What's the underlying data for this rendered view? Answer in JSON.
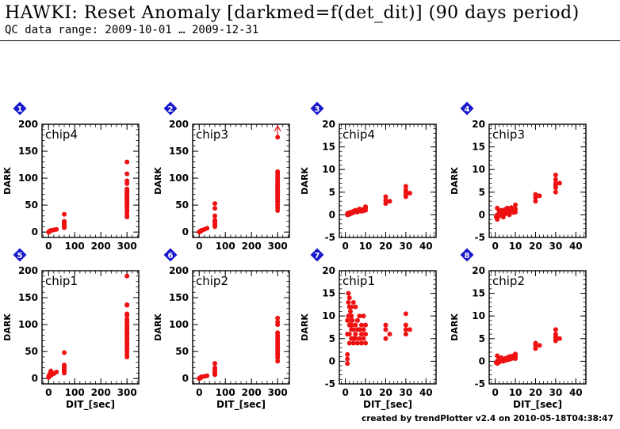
{
  "title": "HAWKI: Reset Anomaly [darkmed=f(det_dit)] (90 days period)",
  "subtitle": "QC data range: 2009-10-01 … 2009-12-31",
  "footer": "created by trendPlotter v2.4 on 2010-05-18T04:38:47",
  "colors": {
    "points": "#ee1111",
    "badge": "#1818cc",
    "axis": "#000000"
  },
  "chart_data": [
    {
      "type": "scatter",
      "badge": "1",
      "label": "chip4",
      "xlabel": "",
      "ylabel": "DARK",
      "xlim": [
        -25,
        345
      ],
      "ylim": [
        -10,
        200
      ],
      "xticks": [
        0,
        100,
        200,
        300
      ],
      "yticks": [
        0,
        50,
        100,
        150,
        200
      ],
      "x": [
        0,
        1,
        2,
        3,
        4,
        5,
        6,
        7,
        8,
        9,
        10,
        20,
        30,
        60,
        60,
        60,
        60,
        60,
        60,
        60,
        60,
        60,
        60,
        300,
        300,
        300,
        300,
        300,
        300,
        300,
        300,
        300,
        300,
        300,
        300,
        300,
        300,
        300,
        300,
        300,
        300,
        300,
        300,
        300,
        300,
        300,
        300
      ],
      "y": [
        0,
        0,
        1,
        1,
        1,
        2,
        2,
        2,
        3,
        3,
        3,
        4,
        5,
        8,
        10,
        12,
        14,
        15,
        16,
        17,
        18,
        20,
        33,
        28,
        33,
        38,
        42,
        46,
        50,
        53,
        55,
        58,
        60,
        62,
        64,
        66,
        68,
        70,
        72,
        74,
        76,
        78,
        80,
        90,
        95,
        108,
        130
      ]
    },
    {
      "type": "scatter",
      "badge": "2",
      "label": "chip3",
      "xlabel": "",
      "ylabel": "DARK",
      "xlim": [
        -25,
        345
      ],
      "ylim": [
        -10,
        200
      ],
      "xticks": [
        0,
        100,
        200,
        300
      ],
      "yticks": [
        0,
        50,
        100,
        150,
        200
      ],
      "x": [
        0,
        1,
        2,
        3,
        4,
        5,
        6,
        7,
        8,
        9,
        10,
        20,
        30,
        60,
        60,
        60,
        60,
        60,
        60,
        60,
        60,
        60,
        300,
        300,
        300,
        300,
        300,
        300,
        300,
        300,
        300,
        300,
        300,
        300,
        300,
        300,
        300,
        300,
        300,
        300,
        300,
        300,
        300,
        300,
        300,
        300,
        300
      ],
      "y": [
        0,
        0,
        1,
        1,
        1,
        2,
        2,
        2,
        3,
        3,
        3,
        5,
        7,
        10,
        14,
        16,
        18,
        20,
        22,
        30,
        44,
        53,
        40,
        45,
        50,
        55,
        58,
        60,
        63,
        66,
        68,
        70,
        73,
        76,
        78,
        80,
        83,
        86,
        88,
        90,
        93,
        96,
        100,
        104,
        108,
        112,
        176
      ],
      "annotation": "arrow-up at (300, 176)"
    },
    {
      "type": "scatter",
      "badge": "3",
      "label": "chip4",
      "xlabel": "",
      "ylabel": "DARK",
      "xlim": [
        -3,
        45
      ],
      "ylim": [
        -5,
        20
      ],
      "xticks": [
        0,
        10,
        20,
        30,
        40
      ],
      "yticks": [
        -5,
        0,
        5,
        10,
        15,
        20
      ],
      "x": [
        1,
        1,
        1.5,
        2,
        2,
        2.5,
        3,
        3,
        4,
        4,
        5,
        5,
        6,
        6,
        7,
        7,
        8,
        8,
        9,
        9,
        10,
        10,
        10,
        20,
        20,
        20,
        22,
        30,
        30,
        30,
        30,
        30,
        32
      ],
      "y": [
        0,
        0.3,
        0.2,
        0.5,
        0.1,
        0.4,
        0.6,
        0.3,
        0.8,
        0.5,
        0.7,
        1.0,
        0.9,
        0.6,
        1.0,
        1.3,
        1.1,
        0.8,
        1.2,
        0.9,
        1.5,
        1.0,
        1.8,
        2.5,
        3.2,
        4.0,
        3.0,
        4.0,
        4.5,
        5.0,
        5.5,
        6.3,
        4.8
      ]
    },
    {
      "type": "scatter",
      "badge": "4",
      "label": "chip3",
      "xlabel": "",
      "ylabel": "DARK",
      "xlim": [
        -3,
        45
      ],
      "ylim": [
        -5,
        20
      ],
      "xticks": [
        0,
        10,
        20,
        30,
        40
      ],
      "yticks": [
        -5,
        0,
        5,
        10,
        15,
        20
      ],
      "x": [
        0.5,
        1,
        1,
        1,
        1.5,
        2,
        2,
        2.5,
        3,
        3,
        4,
        4,
        5,
        5,
        6,
        6,
        7,
        7,
        8,
        8,
        9,
        9,
        10,
        10,
        10,
        20,
        20,
        20,
        22,
        30,
        30,
        30,
        30,
        30,
        30,
        32
      ],
      "y": [
        -0.5,
        0,
        -1,
        1.5,
        -0.3,
        0,
        0.8,
        -0.2,
        0.3,
        1,
        0.5,
        -0.5,
        0.2,
        1.2,
        0.5,
        1.5,
        0.8,
        0,
        1,
        1.6,
        1.2,
        0.5,
        1.3,
        2.2,
        0.6,
        3.0,
        3.8,
        4.5,
        4.2,
        5.0,
        6.0,
        7.0,
        7.8,
        8.8,
        6.5,
        7.0
      ]
    },
    {
      "type": "scatter",
      "badge": "5",
      "label": "chip1",
      "xlabel": "DIT_[sec]",
      "ylabel": "DARK",
      "xlim": [
        -25,
        345
      ],
      "ylim": [
        -10,
        200
      ],
      "xticks": [
        0,
        100,
        200,
        300
      ],
      "yticks": [
        0,
        50,
        100,
        150,
        200
      ],
      "x": [
        0,
        1,
        2,
        3,
        4,
        5,
        6,
        7,
        8,
        9,
        10,
        20,
        30,
        60,
        60,
        60,
        60,
        60,
        60,
        60,
        60,
        300,
        300,
        300,
        300,
        300,
        300,
        300,
        300,
        300,
        300,
        300,
        300,
        300,
        300,
        300,
        300,
        300,
        300,
        300,
        300,
        300,
        300,
        300,
        300,
        300
      ],
      "y": [
        2,
        4,
        5,
        6,
        7,
        8,
        9,
        10,
        12,
        14,
        6,
        9,
        12,
        10,
        13,
        15,
        17,
        19,
        22,
        25,
        48,
        40,
        45,
        50,
        55,
        60,
        63,
        66,
        70,
        73,
        76,
        80,
        83,
        86,
        90,
        93,
        96,
        100,
        103,
        106,
        110,
        117,
        120,
        137,
        136,
        190
      ]
    },
    {
      "type": "scatter",
      "badge": "6",
      "label": "chip2",
      "xlabel": "DIT_[sec]",
      "ylabel": "DARK",
      "xlim": [
        -25,
        345
      ],
      "ylim": [
        -10,
        200
      ],
      "xticks": [
        0,
        100,
        200,
        300
      ],
      "yticks": [
        0,
        50,
        100,
        150,
        200
      ],
      "x": [
        0,
        1,
        2,
        3,
        4,
        5,
        6,
        7,
        8,
        9,
        10,
        20,
        30,
        60,
        60,
        60,
        60,
        60,
        60,
        60,
        300,
        300,
        300,
        300,
        300,
        300,
        300,
        300,
        300,
        300,
        300,
        300,
        300,
        300,
        300,
        300,
        300
      ],
      "y": [
        0,
        0,
        1,
        1,
        1,
        2,
        2,
        2,
        3,
        3,
        3,
        4,
        5,
        7,
        9,
        11,
        14,
        17,
        20,
        28,
        32,
        38,
        42,
        46,
        50,
        54,
        58,
        62,
        66,
        70,
        74,
        78,
        80,
        85,
        100,
        105,
        112
      ]
    },
    {
      "type": "scatter",
      "badge": "7",
      "label": "chip1",
      "xlabel": "DIT_[sec]",
      "ylabel": "DARK",
      "xlim": [
        -3,
        45
      ],
      "ylim": [
        -5,
        20
      ],
      "xticks": [
        0,
        10,
        20,
        30,
        40
      ],
      "yticks": [
        -5,
        0,
        5,
        10,
        15,
        20
      ],
      "x": [
        1,
        1,
        1,
        1,
        1,
        1.5,
        1.5,
        1.5,
        2,
        2,
        2,
        2,
        2,
        2.5,
        2.5,
        3,
        3,
        3,
        3,
        3,
        3.5,
        4,
        4,
        4,
        4,
        5,
        5,
        5,
        5,
        6,
        6,
        6,
        7,
        7,
        7,
        8,
        8,
        8,
        9,
        9,
        9,
        10,
        10,
        10,
        20,
        20,
        20,
        22,
        30,
        30,
        30,
        30,
        32
      ],
      "y": [
        -0.5,
        0.5,
        1.5,
        6,
        9,
        15,
        13,
        10,
        12,
        8,
        6,
        4,
        14,
        11,
        9,
        12,
        7,
        5,
        10,
        8,
        9,
        7,
        5,
        13,
        4,
        12,
        8,
        6,
        5,
        7,
        9,
        4,
        5,
        7,
        10,
        6,
        4,
        8,
        5,
        7,
        10,
        4,
        6,
        8,
        5,
        7,
        8,
        6,
        6,
        7,
        8,
        10.5,
        7
      ]
    },
    {
      "type": "scatter",
      "badge": "8",
      "label": "chip2",
      "xlabel": "DIT_[sec]",
      "ylabel": "DARK",
      "xlim": [
        -3,
        45
      ],
      "ylim": [
        -5,
        20
      ],
      "xticks": [
        0,
        10,
        20,
        30,
        40
      ],
      "yticks": [
        -5,
        0,
        5,
        10,
        15,
        20
      ],
      "x": [
        0.5,
        1,
        1,
        1,
        1.5,
        2,
        2,
        2.5,
        3,
        3,
        4,
        4,
        5,
        5,
        6,
        6,
        7,
        7,
        8,
        8,
        9,
        9,
        10,
        10,
        10,
        20,
        20,
        20,
        22,
        30,
        30,
        30,
        30,
        30,
        32
      ],
      "y": [
        -0.3,
        0,
        -0.5,
        1.2,
        0.2,
        0.5,
        -0.2,
        0.3,
        0.8,
        0.1,
        0.5,
        0,
        0.6,
        0.2,
        0.8,
        0.3,
        1,
        0.4,
        1.1,
        0.6,
        1.2,
        0.7,
        1.0,
        1.6,
        0.6,
        2.8,
        3.5,
        4.0,
        3.5,
        4.5,
        5.2,
        6.0,
        7.0,
        5.5,
        5.0
      ]
    }
  ]
}
